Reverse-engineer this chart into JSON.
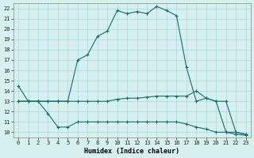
{
  "title": "",
  "xlabel": "Humidex (Indice chaleur)",
  "xlim": [
    -0.5,
    23.5
  ],
  "ylim": [
    9.5,
    22.5
  ],
  "xticks": [
    0,
    1,
    2,
    3,
    4,
    5,
    6,
    7,
    8,
    9,
    10,
    11,
    12,
    13,
    14,
    15,
    16,
    17,
    18,
    19,
    20,
    21,
    22,
    23
  ],
  "yticks": [
    10,
    11,
    12,
    13,
    14,
    15,
    16,
    17,
    18,
    19,
    20,
    21,
    22
  ],
  "bg_color": "#d6f0f0",
  "line_color": "#1a6b6b",
  "grid_color": "#aad8d8",
  "line1_x": [
    0,
    1,
    2,
    3,
    4,
    5,
    6,
    7,
    8,
    9,
    10,
    11,
    12,
    13,
    14,
    15,
    16,
    17,
    18,
    19,
    20,
    21,
    22,
    23
  ],
  "line1_y": [
    14.5,
    13.0,
    13.0,
    13.0,
    13.0,
    13.0,
    17.0,
    17.5,
    19.3,
    19.8,
    21.8,
    21.5,
    21.7,
    21.5,
    22.2,
    21.8,
    21.3,
    16.3,
    13.0,
    13.3,
    13.0,
    10.0,
    9.8,
    9.7
  ],
  "line2_x": [
    0,
    1,
    2,
    3,
    4,
    5,
    6,
    7,
    8,
    9,
    10,
    11,
    12,
    13,
    14,
    15,
    16,
    17,
    18,
    19,
    20,
    21,
    22,
    23
  ],
  "line2_y": [
    13.0,
    13.0,
    13.0,
    13.0,
    13.0,
    13.0,
    13.0,
    13.0,
    13.0,
    13.0,
    13.2,
    13.3,
    13.3,
    13.4,
    13.5,
    13.5,
    13.5,
    13.5,
    14.0,
    13.3,
    13.0,
    13.0,
    10.0,
    9.8
  ],
  "line3_x": [
    0,
    1,
    2,
    3,
    4,
    5,
    6,
    7,
    8,
    9,
    10,
    11,
    12,
    13,
    14,
    15,
    16,
    17,
    18,
    19,
    20,
    21,
    22,
    23
  ],
  "line3_y": [
    13.0,
    13.0,
    13.0,
    11.8,
    10.5,
    10.5,
    11.0,
    11.0,
    11.0,
    11.0,
    11.0,
    11.0,
    11.0,
    11.0,
    11.0,
    11.0,
    11.0,
    10.8,
    10.5,
    10.3,
    10.0,
    10.0,
    10.0,
    9.8
  ],
  "marker": "+",
  "markersize": 3,
  "linewidth": 0.8
}
